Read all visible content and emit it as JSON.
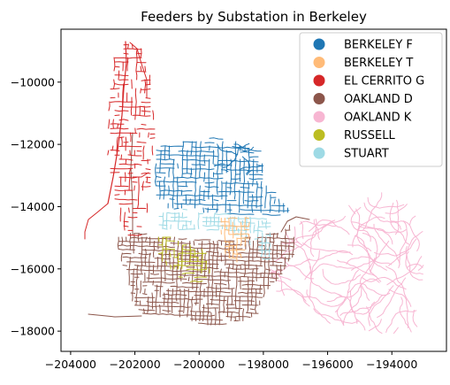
{
  "chart_data": {
    "type": "map",
    "title": "Feeders by Substation in Berkeley",
    "xlabel": "",
    "ylabel": "",
    "xlim": [
      -204300,
      -192300
    ],
    "ylim": [
      -18650,
      -8300
    ],
    "x_ticks": [
      -204000,
      -202000,
      -200000,
      -198000,
      -196000,
      -194000
    ],
    "x_tick_labels": [
      "−204000",
      "−202000",
      "−200000",
      "−198000",
      "−196000",
      "−194000"
    ],
    "y_ticks": [
      -10000,
      -12000,
      -14000,
      -16000,
      -18000
    ],
    "y_tick_labels": [
      "−10000",
      "−12000",
      "−14000",
      "−16000",
      "−18000"
    ],
    "grid": false,
    "legend_placement": "upper-right",
    "legend": [
      {
        "name": "BERKELEY F",
        "color": "#1f77b4"
      },
      {
        "name": "BERKELEY T",
        "color": "#ffbb78"
      },
      {
        "name": "EL CERRITO G",
        "color": "#d62728"
      },
      {
        "name": "OAKLAND D",
        "color": "#8c564b"
      },
      {
        "name": "OAKLAND K",
        "color": "#f7b6d2"
      },
      {
        "name": "RUSSELL",
        "color": "#bcbd22"
      },
      {
        "name": "STUART",
        "color": "#9edae5"
      }
    ]
  }
}
